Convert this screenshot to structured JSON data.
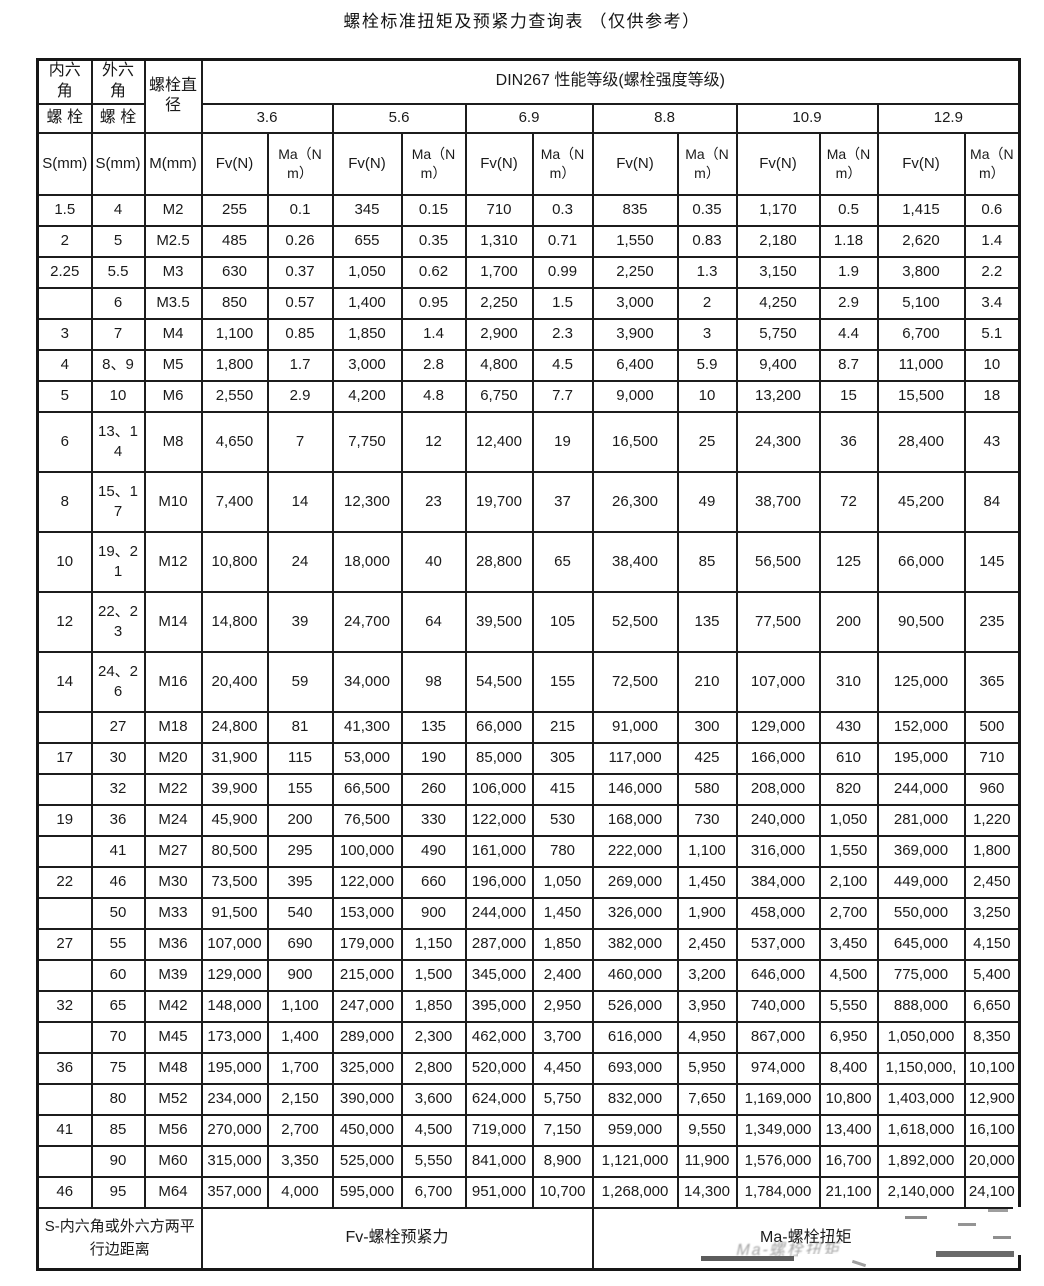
{
  "title": "螺栓标准扭矩及预紧力查询表 （仅供参考）",
  "table": {
    "header": {
      "inner_hex_line1": "内六角",
      "inner_hex_line2": "螺 栓",
      "outer_hex_line1": "外六角",
      "outer_hex_line2": "螺 栓",
      "diameter": "螺栓直径",
      "din": "DIN267 性能等级(螺栓强度等级)",
      "grades": [
        "3.6",
        "5.6",
        "6.9",
        "8.8",
        "10.9",
        "12.9"
      ],
      "s_label": "S(mm)",
      "m_label": "M(mm)",
      "fv_label": "Fv(N)",
      "ma_label": "Ma（N m）"
    },
    "rows": [
      [
        "1.5",
        "4",
        "M2",
        "255",
        "0.1",
        "345",
        "0.15",
        "710",
        "0.3",
        "835",
        "0.35",
        "1,170",
        "0.5",
        "1,415",
        "0.6"
      ],
      [
        "2",
        "5",
        "M2.5",
        "485",
        "0.26",
        "655",
        "0.35",
        "1,310",
        "0.71",
        "1,550",
        "0.83",
        "2,180",
        "1.18",
        "2,620",
        "1.4"
      ],
      [
        "2.25",
        "5.5",
        "M3",
        "630",
        "0.37",
        "1,050",
        "0.62",
        "1,700",
        "0.99",
        "2,250",
        "1.3",
        "3,150",
        "1.9",
        "3,800",
        "2.2"
      ],
      [
        "",
        "6",
        "M3.5",
        "850",
        "0.57",
        "1,400",
        "0.95",
        "2,250",
        "1.5",
        "3,000",
        "2",
        "4,250",
        "2.9",
        "5,100",
        "3.4"
      ],
      [
        "3",
        "7",
        "M4",
        "1,100",
        "0.85",
        "1,850",
        "1.4",
        "2,900",
        "2.3",
        "3,900",
        "3",
        "5,750",
        "4.4",
        "6,700",
        "5.1"
      ],
      [
        "4",
        "8、9",
        "M5",
        "1,800",
        "1.7",
        "3,000",
        "2.8",
        "4,800",
        "4.5",
        "6,400",
        "5.9",
        "9,400",
        "8.7",
        "11,000",
        "10"
      ],
      [
        "5",
        "10",
        "M6",
        "2,550",
        "2.9",
        "4,200",
        "4.8",
        "6,750",
        "7.7",
        "9,000",
        "10",
        "13,200",
        "15",
        "15,500",
        "18"
      ],
      [
        "6",
        "13、14",
        "M8",
        "4,650",
        "7",
        "7,750",
        "12",
        "12,400",
        "19",
        "16,500",
        "25",
        "24,300",
        "36",
        "28,400",
        "43"
      ],
      [
        "8",
        "15、17",
        "M10",
        "7,400",
        "14",
        "12,300",
        "23",
        "19,700",
        "37",
        "26,300",
        "49",
        "38,700",
        "72",
        "45,200",
        "84"
      ],
      [
        "10",
        "19、21",
        "M12",
        "10,800",
        "24",
        "18,000",
        "40",
        "28,800",
        "65",
        "38,400",
        "85",
        "56,500",
        "125",
        "66,000",
        "145"
      ],
      [
        "12",
        "22、23",
        "M14",
        "14,800",
        "39",
        "24,700",
        "64",
        "39,500",
        "105",
        "52,500",
        "135",
        "77,500",
        "200",
        "90,500",
        "235"
      ],
      [
        "14",
        "24、26",
        "M16",
        "20,400",
        "59",
        "34,000",
        "98",
        "54,500",
        "155",
        "72,500",
        "210",
        "107,000",
        "310",
        "125,000",
        "365"
      ],
      [
        "",
        "27",
        "M18",
        "24,800",
        "81",
        "41,300",
        "135",
        "66,000",
        "215",
        "91,000",
        "300",
        "129,000",
        "430",
        "152,000",
        "500"
      ],
      [
        "17",
        "30",
        "M20",
        "31,900",
        "115",
        "53,000",
        "190",
        "85,000",
        "305",
        "117,000",
        "425",
        "166,000",
        "610",
        "195,000",
        "710"
      ],
      [
        "",
        "32",
        "M22",
        "39,900",
        "155",
        "66,500",
        "260",
        "106,000",
        "415",
        "146,000",
        "580",
        "208,000",
        "820",
        "244,000",
        "960"
      ],
      [
        "19",
        "36",
        "M24",
        "45,900",
        "200",
        "76,500",
        "330",
        "122,000",
        "530",
        "168,000",
        "730",
        "240,000",
        "1,050",
        "281,000",
        "1,220"
      ],
      [
        "",
        "41",
        "M27",
        "80,500",
        "295",
        "100,000",
        "490",
        "161,000",
        "780",
        "222,000",
        "1,100",
        "316,000",
        "1,550",
        "369,000",
        "1,800"
      ],
      [
        "22",
        "46",
        "M30",
        "73,500",
        "395",
        "122,000",
        "660",
        "196,000",
        "1,050",
        "269,000",
        "1,450",
        "384,000",
        "2,100",
        "449,000",
        "2,450"
      ],
      [
        "",
        "50",
        "M33",
        "91,500",
        "540",
        "153,000",
        "900",
        "244,000",
        "1,450",
        "326,000",
        "1,900",
        "458,000",
        "2,700",
        "550,000",
        "3,250"
      ],
      [
        "27",
        "55",
        "M36",
        "107,000",
        "690",
        "179,000",
        "1,150",
        "287,000",
        "1,850",
        "382,000",
        "2,450",
        "537,000",
        "3,450",
        "645,000",
        "4,150"
      ],
      [
        "",
        "60",
        "M39",
        "129,000",
        "900",
        "215,000",
        "1,500",
        "345,000",
        "2,400",
        "460,000",
        "3,200",
        "646,000",
        "4,500",
        "775,000",
        "5,400"
      ],
      [
        "32",
        "65",
        "M42",
        "148,000",
        "1,100",
        "247,000",
        "1,850",
        "395,000",
        "2,950",
        "526,000",
        "3,950",
        "740,000",
        "5,550",
        "888,000",
        "6,650"
      ],
      [
        "",
        "70",
        "M45",
        "173,000",
        "1,400",
        "289,000",
        "2,300",
        "462,000",
        "3,700",
        "616,000",
        "4,950",
        "867,000",
        "6,950",
        "1,050,000",
        "8,350"
      ],
      [
        "36",
        "75",
        "M48",
        "195,000",
        "1,700",
        "325,000",
        "2,800",
        "520,000",
        "4,450",
        "693,000",
        "5,950",
        "974,000",
        "8,400",
        "1,150,000,",
        "10,100"
      ],
      [
        "",
        "80",
        "M52",
        "234,000",
        "2,150",
        "390,000",
        "3,600",
        "624,000",
        "5,750",
        "832,000",
        "7,650",
        "1,169,000",
        "10,800",
        "1,403,000",
        "12,900"
      ],
      [
        "41",
        "85",
        "M56",
        "270,000",
        "2,700",
        "450,000",
        "4,500",
        "719,000",
        "7,150",
        "959,000",
        "9,550",
        "1,349,000",
        "13,400",
        "1,618,000",
        "16,100"
      ],
      [
        "",
        "90",
        "M60",
        "315,000",
        "3,350",
        "525,000",
        "5,550",
        "841,000",
        "8,900",
        "1,121,000",
        "11,900",
        "1,576,000",
        "16,700",
        "1,892,000",
        "20,000"
      ],
      [
        "46",
        "95",
        "M64",
        "357,000",
        "4,000",
        "595,000",
        "6,700",
        "951,000",
        "10,700",
        "1,268,000",
        "14,300",
        "1,784,000",
        "21,100",
        "2,140,000",
        "24,100"
      ]
    ],
    "footer": {
      "left": "S-内六角或外六方两平行边距离",
      "mid": "Fv-螺栓预紧力",
      "right": "Ma-螺栓扭矩"
    }
  }
}
